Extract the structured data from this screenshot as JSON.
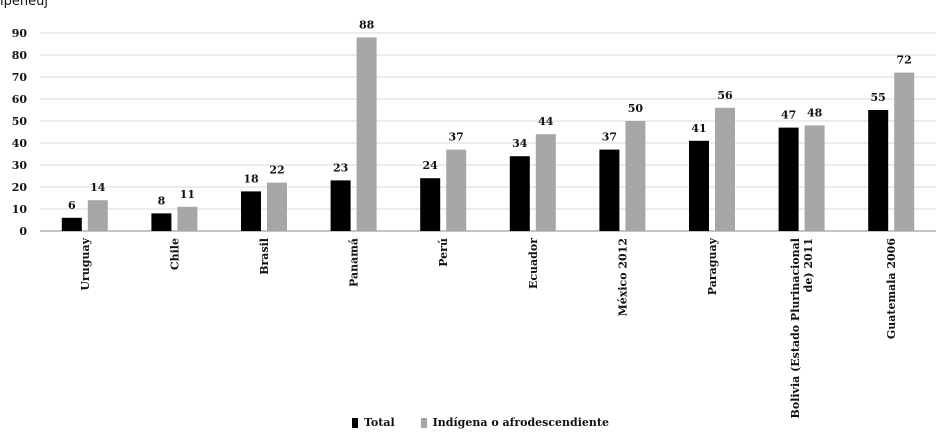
{
  "header_fragment": "ipeñeuj",
  "chart_data": {
    "type": "bar",
    "categories": [
      "Uruguay",
      "Chile",
      "Brasil",
      "Panamá",
      "Perú",
      "Ecuador",
      "México 2012",
      "Paraguay",
      "Bolivia (Estado Plurinacional de) 2011",
      "Guatemala 2006"
    ],
    "series": [
      {
        "name": "Total",
        "values": [
          6,
          8,
          18,
          23,
          24,
          34,
          37,
          41,
          47,
          55
        ],
        "color": "#000000"
      },
      {
        "name": "Indígena o afrodescendiente",
        "values": [
          14,
          11,
          22,
          88,
          37,
          44,
          50,
          56,
          48,
          72
        ],
        "color": "#a6a6a6"
      }
    ],
    "y_ticks": [
      0,
      10,
      20,
      30,
      40,
      50,
      60,
      70,
      80,
      90
    ],
    "ylim": [
      0,
      90
    ],
    "grid": true,
    "legend_position": "bottom"
  }
}
